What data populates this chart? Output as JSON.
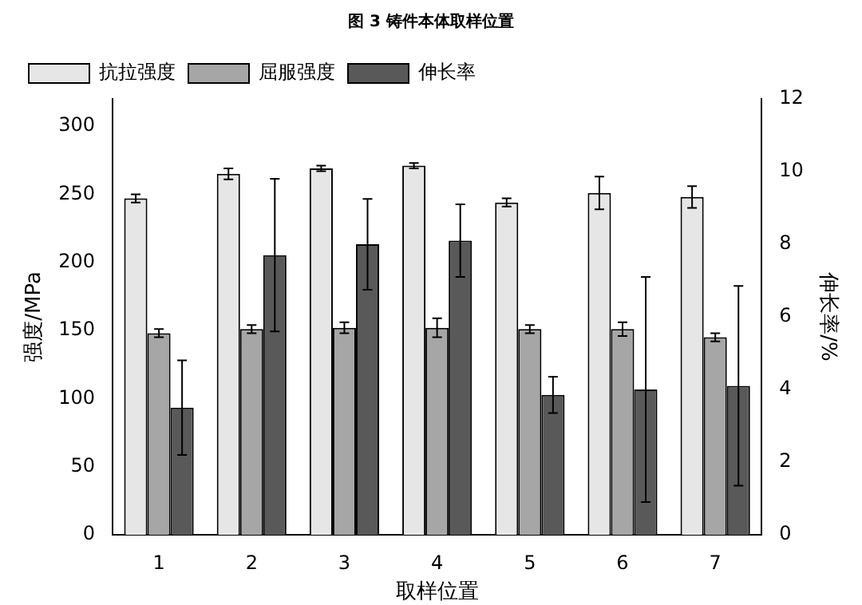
{
  "chart_data": {
    "type": "bar",
    "title": "图 3 铸件本体取样位置",
    "xlabel": "取样位置",
    "ylabel": "强度/MPa",
    "y2label": "伸长率/%",
    "categories": [
      "1",
      "2",
      "3",
      "4",
      "5",
      "6",
      "7"
    ],
    "series": [
      {
        "name": "抗拉强度",
        "color": "#e6e6e6",
        "values": [
          247,
          265,
          269,
          271,
          244,
          251,
          248
        ],
        "errors": [
          3,
          4,
          2,
          2,
          3,
          12,
          8
        ]
      },
      {
        "name": "屈服强度",
        "color": "#a6a6a6",
        "values": [
          148,
          151,
          152,
          152,
          151,
          151,
          145
        ],
        "errors": [
          3,
          3,
          4,
          7,
          3,
          5,
          3
        ]
      },
      {
        "name": "伸长率",
        "color": "#595959",
        "axis": "y2",
        "values": [
          3.5,
          7.7,
          8.0,
          8.1,
          3.85,
          4.0,
          4.1
        ],
        "errors": [
          1.3,
          2.1,
          1.25,
          1.0,
          0.5,
          3.1,
          2.75
        ]
      }
    ],
    "ylim": [
      0,
      320
    ],
    "yticks": [
      0,
      50,
      100,
      150,
      200,
      250,
      300
    ],
    "y2lim": [
      0,
      12
    ],
    "y2ticks": [
      0,
      2,
      4,
      6,
      8,
      10,
      12
    ],
    "grid": false,
    "legend": "top left"
  }
}
